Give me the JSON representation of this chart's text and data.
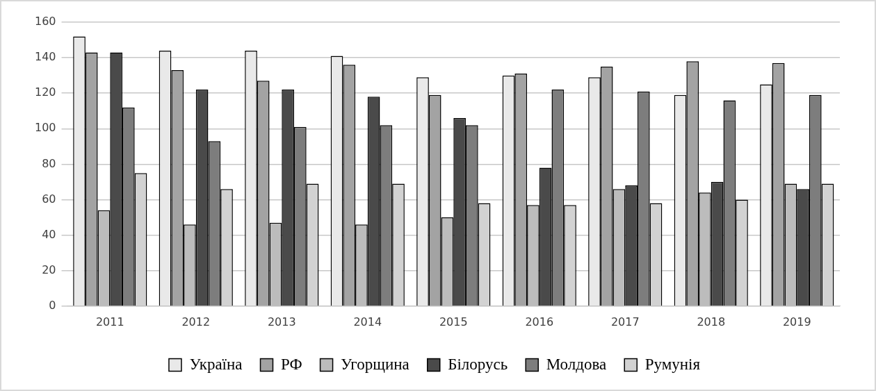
{
  "chart_data": {
    "type": "bar",
    "categories": [
      "2011",
      "2012",
      "2013",
      "2014",
      "2015",
      "2016",
      "2017",
      "2018",
      "2019"
    ],
    "series": [
      {
        "name": "Україна",
        "color": "#e9e9e9",
        "values": [
          152,
          144,
          144,
          141,
          129,
          130,
          129,
          119,
          125
        ]
      },
      {
        "name": "РФ",
        "color": "#a3a3a3",
        "values": [
          143,
          133,
          127,
          136,
          119,
          131,
          135,
          138,
          137
        ]
      },
      {
        "name": "Угорщина",
        "color": "#bcbcbc",
        "values": [
          54,
          46,
          47,
          46,
          50,
          57,
          66,
          64,
          69
        ]
      },
      {
        "name": "Білорусь",
        "color": "#4a4a4a",
        "values": [
          143,
          122,
          122,
          118,
          106,
          78,
          68,
          70,
          66
        ]
      },
      {
        "name": "Молдова",
        "color": "#7d7d7d",
        "values": [
          112,
          93,
          101,
          102,
          102,
          122,
          121,
          116,
          119
        ]
      },
      {
        "name": "Румунія",
        "color": "#d2d2d2",
        "values": [
          75,
          66,
          69,
          69,
          58,
          57,
          58,
          60,
          69
        ]
      }
    ],
    "ylim": [
      0,
      160
    ],
    "yticks": [
      0,
      20,
      40,
      60,
      80,
      100,
      120,
      140,
      160
    ],
    "grid": "y",
    "legend": "bottom"
  }
}
